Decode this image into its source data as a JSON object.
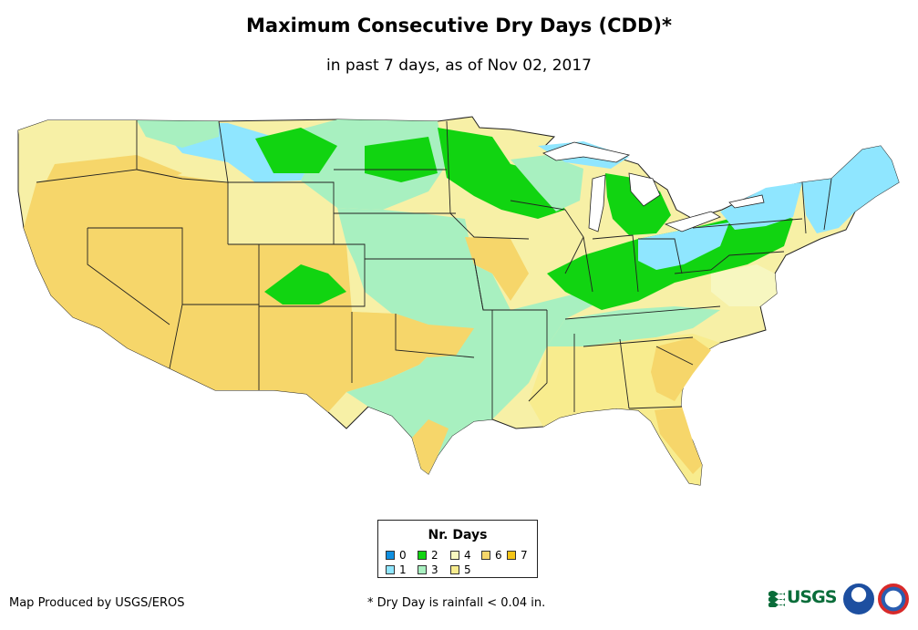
{
  "header": {
    "title": "Maximum Consecutive Dry Days (CDD)*",
    "subtitle": "in past 7 days, as of Nov 02, 2017"
  },
  "legend": {
    "title": "Nr. Days",
    "items": [
      {
        "label": "0",
        "color": "#0f8fe0"
      },
      {
        "label": "1",
        "color": "#8fe6ff"
      },
      {
        "label": "2",
        "color": "#11d411"
      },
      {
        "label": "3",
        "color": "#a8f0c0"
      },
      {
        "label": "4",
        "color": "#f7f7c0"
      },
      {
        "label": "5",
        "color": "#f8ec8e"
      },
      {
        "label": "6",
        "color": "#f6d66a"
      },
      {
        "label": "7",
        "color": "#f5c518"
      }
    ]
  },
  "footer": {
    "credit": "Map Produced by USGS/EROS",
    "footnote": "* Dry Day is rainfall < 0.04 in.",
    "usgs_logo_text": "USGS"
  },
  "colors": {
    "state_border": "#222222",
    "noaa_blue": "#1d4fa0",
    "nws_red": "#d82a2a"
  }
}
